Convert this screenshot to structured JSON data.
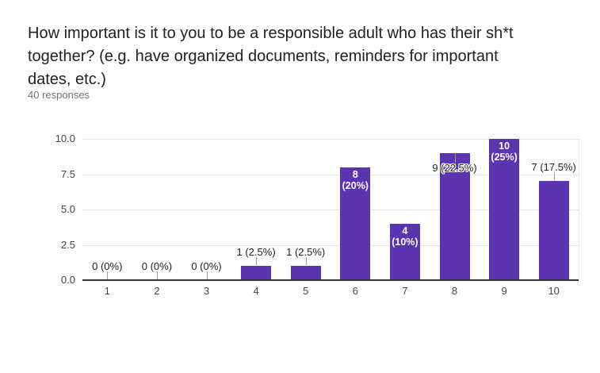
{
  "header": {
    "title_lines": [
      "How important is it to you to be a responsible adult who has their sh*t",
      "together? (e.g. have organized documents, reminders for important",
      "dates, etc.)"
    ],
    "title": "How important is it to you to be a responsible adult who has their sh*t together? (e.g. have organized documents, reminders for important dates, etc.)",
    "responses_label": "40 responses"
  },
  "chart_data": {
    "type": "bar",
    "title": "How important is it to you to be a responsible adult who has their sh*t together? (e.g. have organized documents, reminders for important dates, etc.)",
    "subtitle": "40 responses",
    "categories": [
      "1",
      "2",
      "3",
      "4",
      "5",
      "6",
      "7",
      "8",
      "9",
      "10"
    ],
    "values": [
      0,
      0,
      0,
      1,
      1,
      8,
      4,
      9,
      10,
      7
    ],
    "percents": [
      "0%",
      "0%",
      "0%",
      "2.5%",
      "2.5%",
      "20%",
      "10%",
      "22.5%",
      "25%",
      "17.5%"
    ],
    "bar_labels": [
      "0 (0%)",
      "0 (0%)",
      "0 (0%)",
      "1 (2.5%)",
      "1 (2.5%)",
      "8 (20%)",
      "4 (10%)",
      "9 (22.5%)",
      "10 (25%)",
      "7 (17.5%)"
    ],
    "label_placements": [
      "axis",
      "axis",
      "axis",
      "above",
      "above",
      "inside",
      "inside",
      "overlap",
      "inside",
      "above"
    ],
    "xlabel": "",
    "ylabel": "",
    "ylim": [
      0,
      10
    ],
    "yticks": [
      0,
      2.5,
      5,
      7.5,
      10
    ],
    "ytick_labels": [
      "0.0",
      "2.5",
      "5.0",
      "7.5",
      "10.0"
    ],
    "grid": true,
    "legend": "none",
    "bar_color": "#5b35b0"
  },
  "colors": {
    "bar": "#5b35b0",
    "axis_line": "#333333",
    "gridline": "#e6e6e6",
    "tick_text": "#444444",
    "label_text": "#212121",
    "inside_label_text": "#ffffff",
    "connector": "#9e9e9e",
    "subtitle_text": "#757575",
    "background": "#ffffff"
  }
}
